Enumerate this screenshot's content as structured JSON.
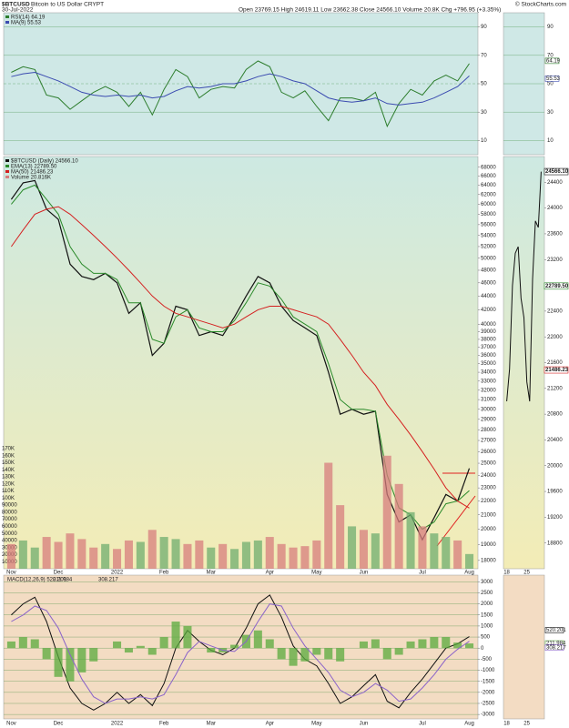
{
  "header": {
    "symbol": "$BTCUSD",
    "name": "Bitcoin to US Dollar CRYPT",
    "date": "30-Jul-2022",
    "quote": "Open 23769.15 High 24619.11 Low 23662.38 Close 24566.10 Volume 20.8K Chg +796.95 (+3.35%)",
    "credit": "© StockCharts.com"
  },
  "chart_data": [
    {
      "type": "line",
      "ylim": [
        0,
        100
      ],
      "yticks": [
        10,
        30,
        50,
        70,
        90
      ],
      "grid": true,
      "series": [
        {
          "name": "RSI(14) 64.19",
          "color": "#2d7d2d",
          "values": [
            58,
            62,
            60,
            42,
            40,
            32,
            38,
            44,
            48,
            44,
            34,
            44,
            28,
            46,
            60,
            55,
            40,
            46,
            48,
            47,
            60,
            66,
            62,
            44,
            40,
            45,
            34,
            24,
            40,
            40,
            38,
            44,
            20,
            36,
            46,
            42,
            52,
            56,
            52,
            64.19
          ]
        },
        {
          "name": "MA(9) 55.53",
          "color": "#3b4bb0",
          "values": [
            55,
            57,
            58,
            55,
            52,
            48,
            44,
            42,
            41,
            42,
            41,
            42,
            40,
            41,
            45,
            48,
            47,
            48,
            50,
            50,
            52,
            55,
            57,
            55,
            52,
            50,
            45,
            40,
            38,
            37,
            38,
            40,
            36,
            35,
            36,
            37,
            40,
            44,
            48,
            55.53
          ]
        }
      ]
    },
    {
      "type": "line",
      "log": true,
      "ylim": [
        17500,
        70500
      ],
      "yticks": [
        18000,
        19000,
        20000,
        21000,
        22000,
        23000,
        24000,
        25000,
        26000,
        27000,
        28000,
        29000,
        30000,
        31000,
        32000,
        33000,
        34000,
        35000,
        36000,
        37000,
        38000,
        39000,
        40000,
        42000,
        44000,
        46000,
        48000,
        50000,
        52000,
        54000,
        56000,
        58000,
        60000,
        62000,
        64000,
        66000,
        68000
      ],
      "y2lim": [
        0,
        170000
      ],
      "y2ticks": [
        10000,
        20000,
        30000,
        40000,
        50000,
        60000,
        70000,
        80000,
        90000,
        {
          "value": 100000,
          "label": "100K"
        },
        {
          "value": 110000,
          "label": "110K"
        },
        {
          "value": 120000,
          "label": "120K"
        },
        {
          "value": 130000,
          "label": "130K"
        },
        {
          "value": 140000,
          "label": "140K"
        },
        {
          "value": 150000,
          "label": "150K"
        },
        {
          "value": 160000,
          "label": "160K"
        },
        {
          "value": 170000,
          "label": "170K"
        }
      ],
      "categories": [
        "Nov",
        null,
        null,
        null,
        "Dec",
        null,
        null,
        null,
        null,
        "2022",
        null,
        null,
        null,
        "Feb",
        null,
        null,
        null,
        "Mar",
        null,
        null,
        null,
        null,
        "Apr",
        null,
        null,
        null,
        "May",
        null,
        null,
        null,
        "Jun",
        null,
        null,
        null,
        null,
        "Jul",
        null,
        null,
        null,
        "Aug"
      ],
      "series": [
        {
          "name": "$BTCUSD (Daily) 24566.10",
          "color": "#111111",
          "values": [
            61000,
            64500,
            65000,
            59000,
            57000,
            49000,
            47000,
            46500,
            47500,
            46000,
            41500,
            43000,
            36000,
            37500,
            42500,
            42000,
            38500,
            39000,
            38500,
            41000,
            44000,
            47000,
            46000,
            42500,
            40500,
            39500,
            38500,
            34000,
            29500,
            30000,
            29500,
            29800,
            22500,
            20500,
            21000,
            19300,
            20800,
            22500,
            22000,
            24566.1
          ]
        },
        {
          "name": "EMA(13) 22789.50",
          "color": "#2a8a2a",
          "values": [
            60000,
            63000,
            64000,
            61000,
            58000,
            52000,
            49000,
            47500,
            47500,
            46500,
            43000,
            43000,
            38000,
            37500,
            41000,
            42000,
            39500,
            39000,
            39000,
            40500,
            43000,
            46000,
            45500,
            43500,
            41000,
            40000,
            39000,
            35000,
            31000,
            30000,
            30000,
            29800,
            24000,
            21500,
            21000,
            20000,
            20500,
            21800,
            22000,
            22789.5
          ]
        },
        {
          "name": "MA(50) 21486.23",
          "color": "#d42020",
          "values": [
            52000,
            55000,
            58000,
            59000,
            59500,
            58000,
            56000,
            54000,
            52000,
            50000,
            48000,
            46000,
            44000,
            42500,
            41500,
            41000,
            40500,
            40000,
            39500,
            40000,
            41000,
            42000,
            42500,
            42500,
            42000,
            41500,
            41000,
            40000,
            38000,
            36000,
            34000,
            32500,
            30500,
            29000,
            27500,
            26000,
            24500,
            23000,
            22000,
            21486.23
          ]
        },
        {
          "name": "Volume 20.816K",
          "color": "#d77d7d",
          "up_color": "#6fae6f",
          "axis": "y2",
          "style": "bar",
          "values": [
            35000,
            40000,
            30000,
            45000,
            38000,
            50000,
            42000,
            30000,
            35000,
            28000,
            40000,
            38000,
            55000,
            45000,
            42000,
            35000,
            40000,
            30000,
            35000,
            28000,
            38000,
            40000,
            45000,
            35000,
            30000,
            32000,
            40000,
            150000,
            90000,
            60000,
            55000,
            50000,
            160000,
            120000,
            80000,
            60000,
            50000,
            45000,
            40000,
            20816
          ]
        }
      ]
    },
    {
      "type": "line",
      "ylim": [
        -3200,
        3300
      ],
      "yticks": [
        3000,
        2500,
        2000,
        1500,
        1000,
        500,
        0,
        -500,
        -1000,
        -1500,
        -2000,
        -2500,
        -3000
      ],
      "grid": true,
      "series": [
        {
          "name": "MACD(12,26,9) 520.201",
          "color": "#111111",
          "values": [
            1500,
            2000,
            2300,
            1200,
            -400,
            -1800,
            -2500,
            -2800,
            -2500,
            -2000,
            -2500,
            -2100,
            -2600,
            -1600,
            0,
            800,
            300,
            -100,
            -300,
            0,
            900,
            2000,
            2400,
            1400,
            100,
            -500,
            -800,
            -1600,
            -2500,
            -2200,
            -1700,
            -1200,
            -2400,
            -2700,
            -2000,
            -1400,
            -700,
            0,
            200,
            520.201
          ]
        },
        {
          "name": "211.984",
          "color": "#5aab3c",
          "style": "bar",
          "values": [
            300,
            500,
            400,
            -500,
            -1300,
            -1500,
            -1100,
            -600,
            0,
            300,
            -200,
            100,
            -300,
            500,
            1200,
            1000,
            0,
            -200,
            -200,
            150,
            600,
            800,
            400,
            -500,
            -800,
            -600,
            -300,
            -500,
            -600,
            0,
            300,
            400,
            -500,
            -300,
            300,
            400,
            500,
            500,
            250,
            211.984
          ]
        },
        {
          "name": "308.217",
          "color": "#8a63c9",
          "values": [
            1200,
            1500,
            1900,
            1700,
            900,
            -300,
            -1400,
            -2200,
            -2500,
            -2300,
            -2300,
            -2200,
            -2300,
            -2100,
            -1200,
            -200,
            300,
            100,
            -100,
            -150,
            300,
            1200,
            2000,
            1900,
            900,
            100,
            -500,
            -1100,
            -1900,
            -2200,
            -2000,
            -1600,
            -1900,
            -2400,
            -2300,
            -1800,
            -1200,
            -500,
            -50,
            308.217
          ]
        }
      ]
    },
    {
      "type": "line",
      "ylim": [
        18400,
        24800
      ],
      "yticks": [
        18800,
        19200,
        19600,
        20000,
        20400,
        20800,
        21200,
        21600,
        22000,
        22400,
        22800,
        23200,
        23600,
        24000,
        24400
      ],
      "categories": [
        "18",
        null,
        null,
        null,
        null,
        null,
        null,
        "25",
        null,
        null,
        null,
        null,
        null
      ],
      "series": [
        {
          "color": "#111111",
          "values": [
            21000,
            21500,
            22800,
            23300,
            23400,
            22600,
            22300,
            21300,
            21000,
            22900,
            23800,
            23700,
            24566.1
          ]
        }
      ],
      "boxes": [
        {
          "value": 24566.1,
          "label": "24566.10"
        },
        {
          "value": 22789.5,
          "label": "22789.50"
        },
        {
          "value": 21486.23,
          "label": "21486.23"
        }
      ]
    }
  ]
}
